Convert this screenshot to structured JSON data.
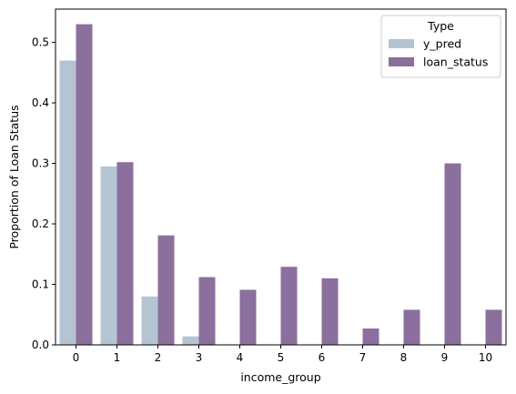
{
  "chart_data": {
    "type": "bar",
    "categories": [
      "0",
      "1",
      "2",
      "3",
      "4",
      "5",
      "6",
      "7",
      "8",
      "9",
      "10"
    ],
    "series": [
      {
        "name": "y_pred",
        "color": "#b5c4d3",
        "values": [
          0.47,
          0.295,
          0.08,
          0.014,
          0,
          0,
          0,
          0,
          0,
          0,
          0
        ]
      },
      {
        "name": "loan_status",
        "color": "#8b6f9c",
        "values": [
          0.53,
          0.302,
          0.181,
          0.112,
          0.091,
          0.129,
          0.11,
          0.027,
          0.058,
          0.3,
          0.058
        ]
      }
    ],
    "xlabel": "income_group",
    "ylabel": "Proportion of Loan Status",
    "ylim": [
      0,
      0.555
    ],
    "yticks": [
      "0.0",
      "0.1",
      "0.2",
      "0.3",
      "0.4",
      "0.5"
    ],
    "ytick_values": [
      0,
      0.1,
      0.2,
      0.3,
      0.4,
      0.5
    ],
    "legend": {
      "title": "Type",
      "placement": "top-right"
    },
    "grid": false
  }
}
